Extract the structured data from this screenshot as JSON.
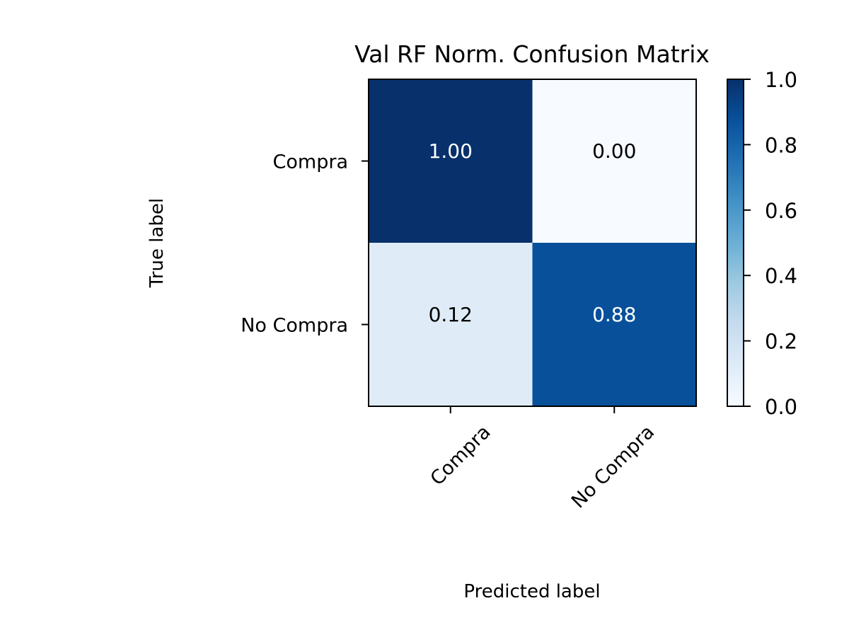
{
  "chart_data": {
    "type": "heatmap",
    "title": "Val RF Norm. Confusion Matrix",
    "xlabel": "Predicted label",
    "ylabel": "True label",
    "x_categories": [
      "Compra",
      "No Compra"
    ],
    "y_categories": [
      "Compra",
      "No Compra"
    ],
    "values": [
      [
        1.0,
        0.0
      ],
      [
        0.12,
        0.88
      ]
    ],
    "cell_labels": [
      [
        "1.00",
        "0.00"
      ],
      [
        "0.12",
        "0.88"
      ]
    ],
    "colormap": "Blues",
    "color_low": "#f7fbff",
    "color_high": "#08306b",
    "colorbar": {
      "range": [
        0.0,
        1.0
      ],
      "ticks": [
        0.0,
        0.2,
        0.4,
        0.6,
        0.8,
        1.0
      ],
      "tick_labels": [
        "0.0",
        "0.2",
        "0.4",
        "0.6",
        "0.8",
        "1.0"
      ]
    }
  }
}
